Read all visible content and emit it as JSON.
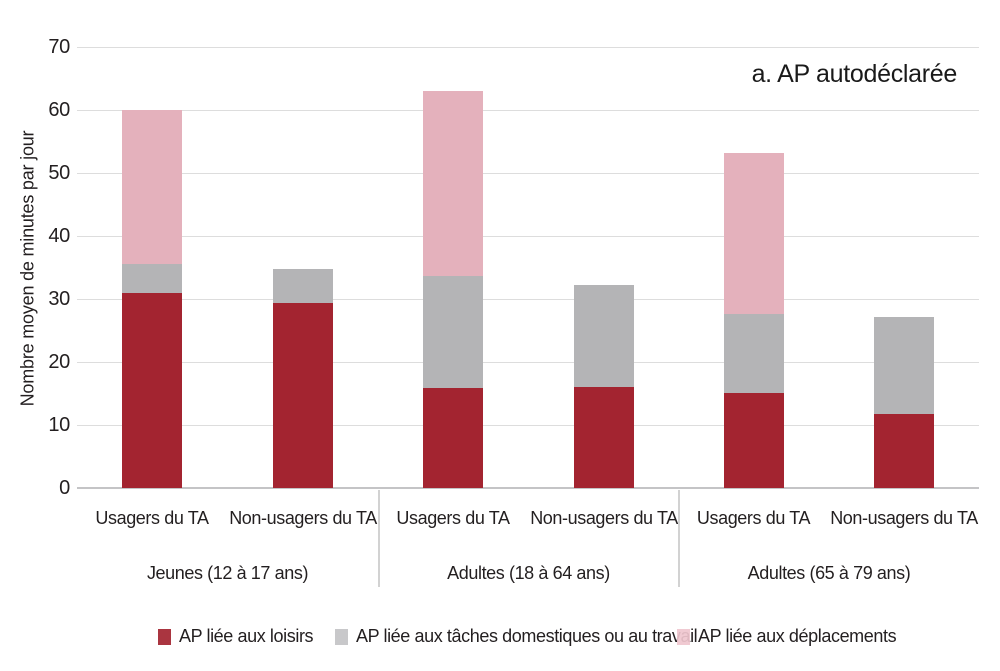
{
  "title": "a. AP autodéclarée",
  "colors": {
    "loisirs": "#A32430",
    "domestiques": "#B4B4B6",
    "deplacements": "#E4B1BC",
    "legend_deplacements": "#EFC6CE",
    "legend_domestiques": "#C3C3C5",
    "gridline": "#DDDDDD",
    "axis": "#C4C4C6",
    "divider": "#D2D2D2",
    "text": "#231F20"
  },
  "legend": [
    {
      "key": "loisirs",
      "label": "AP liée aux loisirs"
    },
    {
      "key": "domestiques",
      "label": "AP liée aux tâches domestiques ou au travail"
    },
    {
      "key": "deplacements",
      "label": "AP liée aux déplacements"
    }
  ],
  "chart_data": {
    "type": "bar",
    "stacked": true,
    "title": "a. AP autodéclarée",
    "xlabel": "",
    "ylabel": "Nombre moyen de minutes par jour",
    "ylim": [
      0,
      70
    ],
    "yticks": [
      0,
      10,
      20,
      30,
      40,
      50,
      60,
      70
    ],
    "grid": true,
    "legend_position": "bottom",
    "series_order": [
      "loisirs",
      "domestiques",
      "deplacements"
    ],
    "series_labels": {
      "loisirs": "AP liée aux loisirs",
      "domestiques": "AP liée aux tâches domestiques ou au travail",
      "deplacements": "AP liée aux déplacements"
    },
    "groups": [
      {
        "label": "Jeunes (12 à 17 ans)",
        "bars": [
          {
            "label": "Usagers du TA",
            "values": {
              "loisirs": 31.0,
              "domestiques": 4.5,
              "deplacements": 24.5
            },
            "total": 60.0
          },
          {
            "label": "Non-usagers du TA",
            "values": {
              "loisirs": 29.4,
              "domestiques": 5.3,
              "deplacements": 0
            },
            "total": 34.7
          }
        ]
      },
      {
        "label": "Adultes (18 à 64 ans)",
        "bars": [
          {
            "label": "Usagers du TA",
            "values": {
              "loisirs": 15.8,
              "domestiques": 17.8,
              "deplacements": 29.4
            },
            "total": 63.0
          },
          {
            "label": "Non-usagers du TA",
            "values": {
              "loisirs": 16.0,
              "domestiques": 16.2,
              "deplacements": 0
            },
            "total": 32.2
          }
        ]
      },
      {
        "label": "Adultes (65 à 79 ans)",
        "bars": [
          {
            "label": "Usagers du TA",
            "values": {
              "loisirs": 15.0,
              "domestiques": 12.6,
              "deplacements": 25.6
            },
            "total": 53.2
          },
          {
            "label": "Non-usagers du TA",
            "values": {
              "loisirs": 11.8,
              "domestiques": 15.3,
              "deplacements": 0
            },
            "total": 27.1
          }
        ]
      }
    ]
  }
}
